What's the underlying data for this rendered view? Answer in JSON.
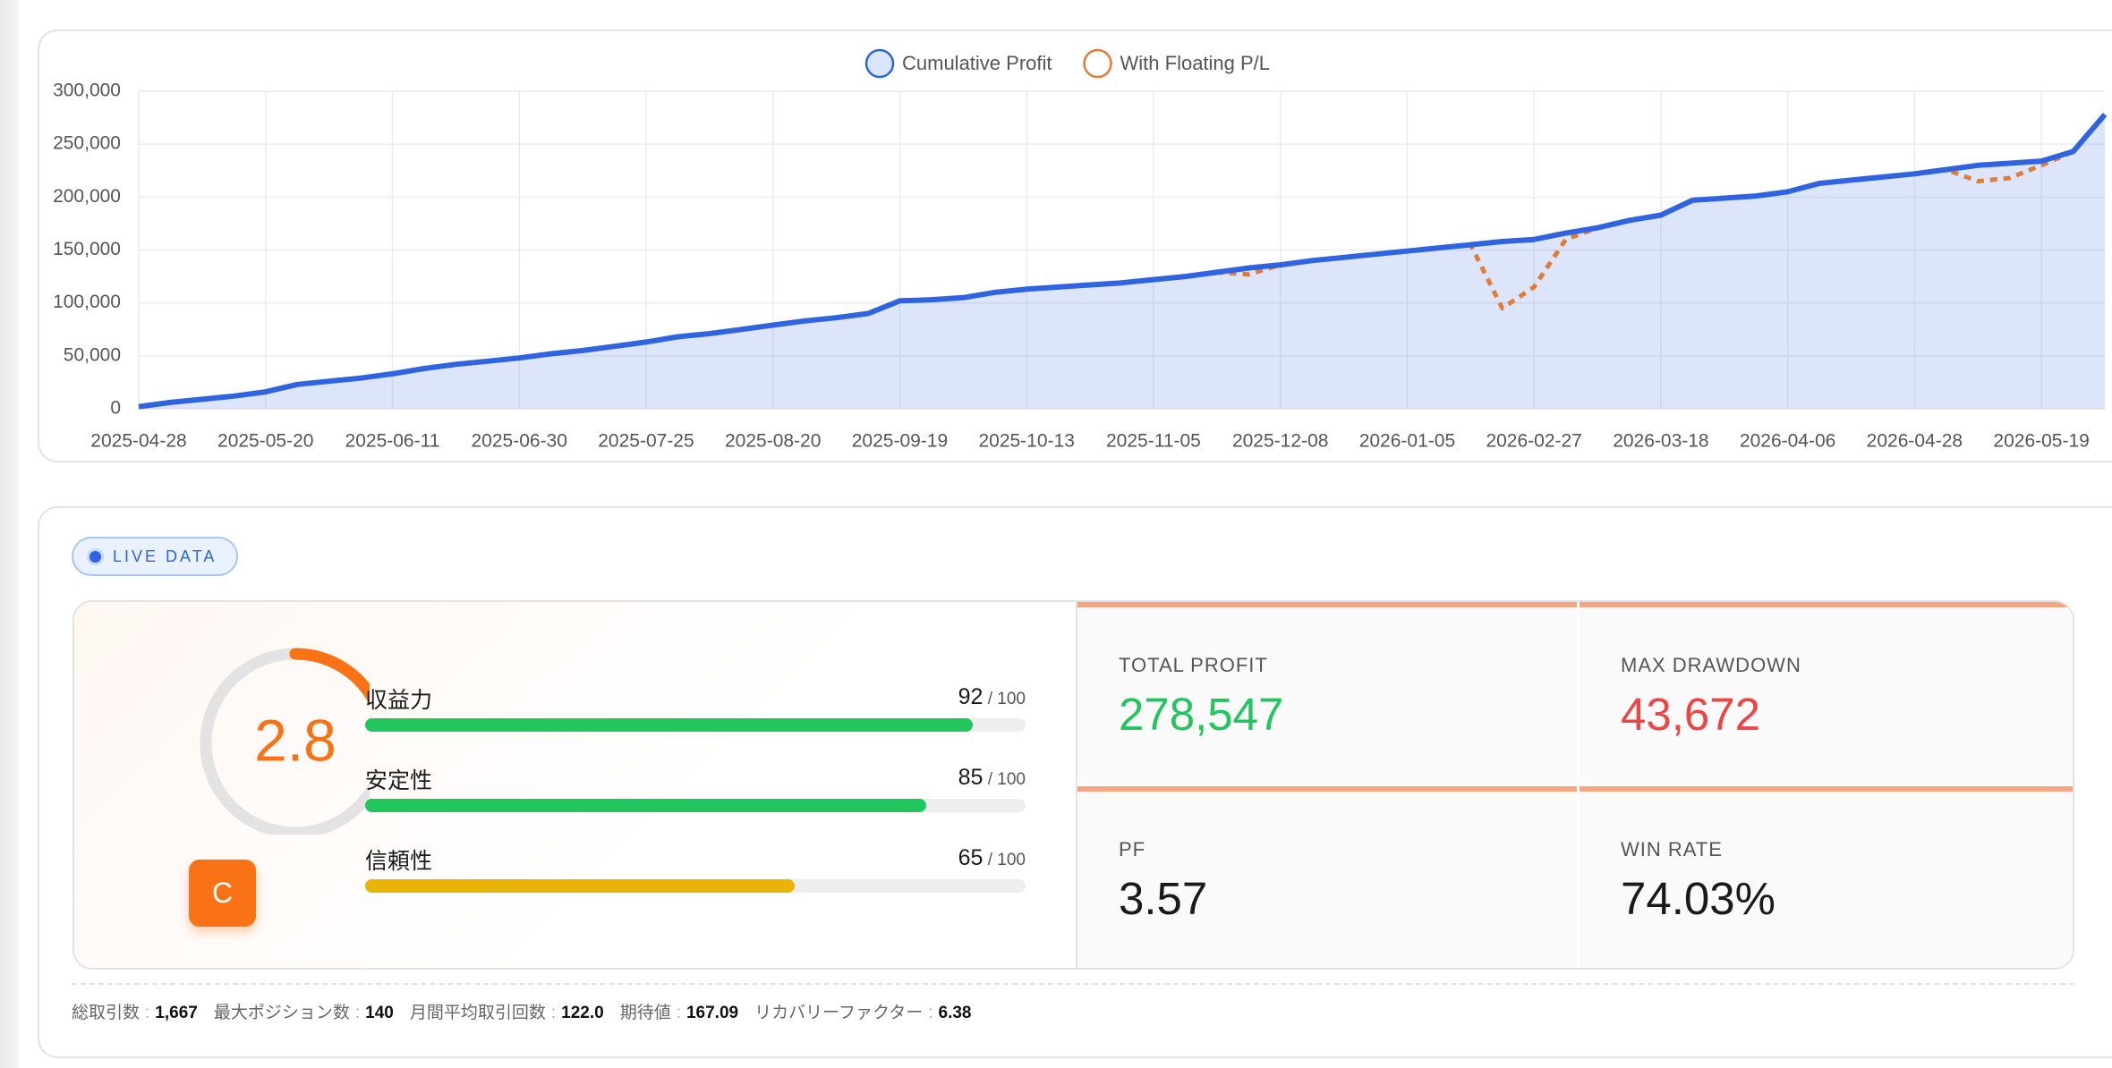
{
  "chart_data": {
    "type": "line",
    "categories": [
      "2025-04-28",
      null,
      null,
      null,
      "2025-05-20",
      null,
      null,
      null,
      "2025-06-11",
      null,
      null,
      null,
      "2025-06-30",
      null,
      null,
      null,
      "2025-07-25",
      null,
      null,
      null,
      "2025-08-20",
      null,
      null,
      null,
      "2025-09-19",
      null,
      null,
      null,
      "2025-10-13",
      null,
      null,
      null,
      "2025-11-05",
      null,
      null,
      null,
      "2025-12-08",
      null,
      null,
      null,
      "2026-01-05",
      null,
      null,
      null,
      "2026-02-27",
      null,
      null,
      null,
      "2026-03-18",
      null,
      null,
      null,
      "2026-04-06",
      null,
      null,
      null,
      "2026-04-28",
      null,
      null,
      null,
      "2026-05-19",
      null,
      null
    ],
    "series": [
      {
        "name": "Cumulative Profit",
        "color": "#2f63e0",
        "fill": true,
        "dashed": false,
        "values": [
          2000,
          6000,
          9000,
          12000,
          16000,
          23000,
          26000,
          29000,
          33000,
          38000,
          42000,
          45000,
          48000,
          52000,
          55000,
          59000,
          63000,
          68000,
          71000,
          75000,
          79000,
          83000,
          86000,
          90000,
          102000,
          103000,
          105000,
          110000,
          113000,
          115000,
          117000,
          119000,
          122000,
          125000,
          129000,
          133000,
          136000,
          140000,
          143000,
          146000,
          149000,
          152000,
          155000,
          158000,
          160000,
          166000,
          171000,
          178000,
          183000,
          197000,
          199000,
          201000,
          205000,
          213000,
          216000,
          219000,
          222000,
          226000,
          230000,
          232000,
          234000,
          243000,
          278000
        ]
      },
      {
        "name": "With Floating P/L",
        "color": "#e07b39",
        "fill": false,
        "dashed": true,
        "values": [
          2000,
          6000,
          9000,
          12000,
          16000,
          23000,
          26000,
          29000,
          33000,
          38000,
          42000,
          45000,
          48000,
          52000,
          55000,
          59000,
          63000,
          68000,
          71000,
          75000,
          79000,
          83000,
          86000,
          90000,
          102000,
          103000,
          105000,
          110000,
          113000,
          115000,
          117000,
          119000,
          122000,
          125000,
          129000,
          127000,
          136000,
          140000,
          143000,
          146000,
          149000,
          152000,
          155000,
          95000,
          115000,
          160000,
          171000,
          178000,
          183000,
          197000,
          199000,
          201000,
          205000,
          213000,
          216000,
          219000,
          222000,
          226000,
          215000,
          218000,
          230000,
          243000,
          278000
        ]
      }
    ],
    "ylim": [
      0,
      300000
    ],
    "yticks": [
      0,
      {
        "value": 50000,
        "label": "50,000"
      },
      {
        "value": 100000,
        "label": "100,000"
      },
      {
        "value": 150000,
        "label": "150,000"
      },
      {
        "value": 200000,
        "label": "200,000"
      },
      {
        "value": 250000,
        "label": "250,000"
      },
      {
        "value": 300000,
        "label": "300,000"
      }
    ],
    "grid": true,
    "legend": "top"
  },
  "badge": "LIVE DATA",
  "score": {
    "value": 2.8,
    "lim": [
      0,
      10
    ],
    "grade": "C",
    "color": "#f97316"
  },
  "metrics": [
    {
      "label": "収益力",
      "value": 92,
      "max": 100,
      "color": "#22c55e"
    },
    {
      "label": "安定性",
      "value": 85,
      "max": 100,
      "color": "#22c55e"
    },
    {
      "label": "信頼性",
      "value": 65,
      "max": 100,
      "color": "#eab308"
    }
  ],
  "stats": [
    {
      "label": "TOTAL PROFIT",
      "value": "278,547",
      "color": "#22c55e"
    },
    {
      "label": "MAX DRAWDOWN",
      "value": "43,672",
      "color": "#ef4444"
    },
    {
      "label": "PF",
      "value": "3.57",
      "color": "#1a1a1a"
    },
    {
      "label": "WIN RATE",
      "value": "74.03%",
      "color": "#1a1a1a"
    }
  ],
  "footer": [
    {
      "label": "総取引数",
      "value": "1,667"
    },
    {
      "label": "最大ポジション数",
      "value": "140"
    },
    {
      "label": "月間平均取引回数",
      "value": "122.0"
    },
    {
      "label": "期待値",
      "value": "167.09"
    },
    {
      "label": "リカバリーファクター",
      "value": "6.38"
    }
  ]
}
